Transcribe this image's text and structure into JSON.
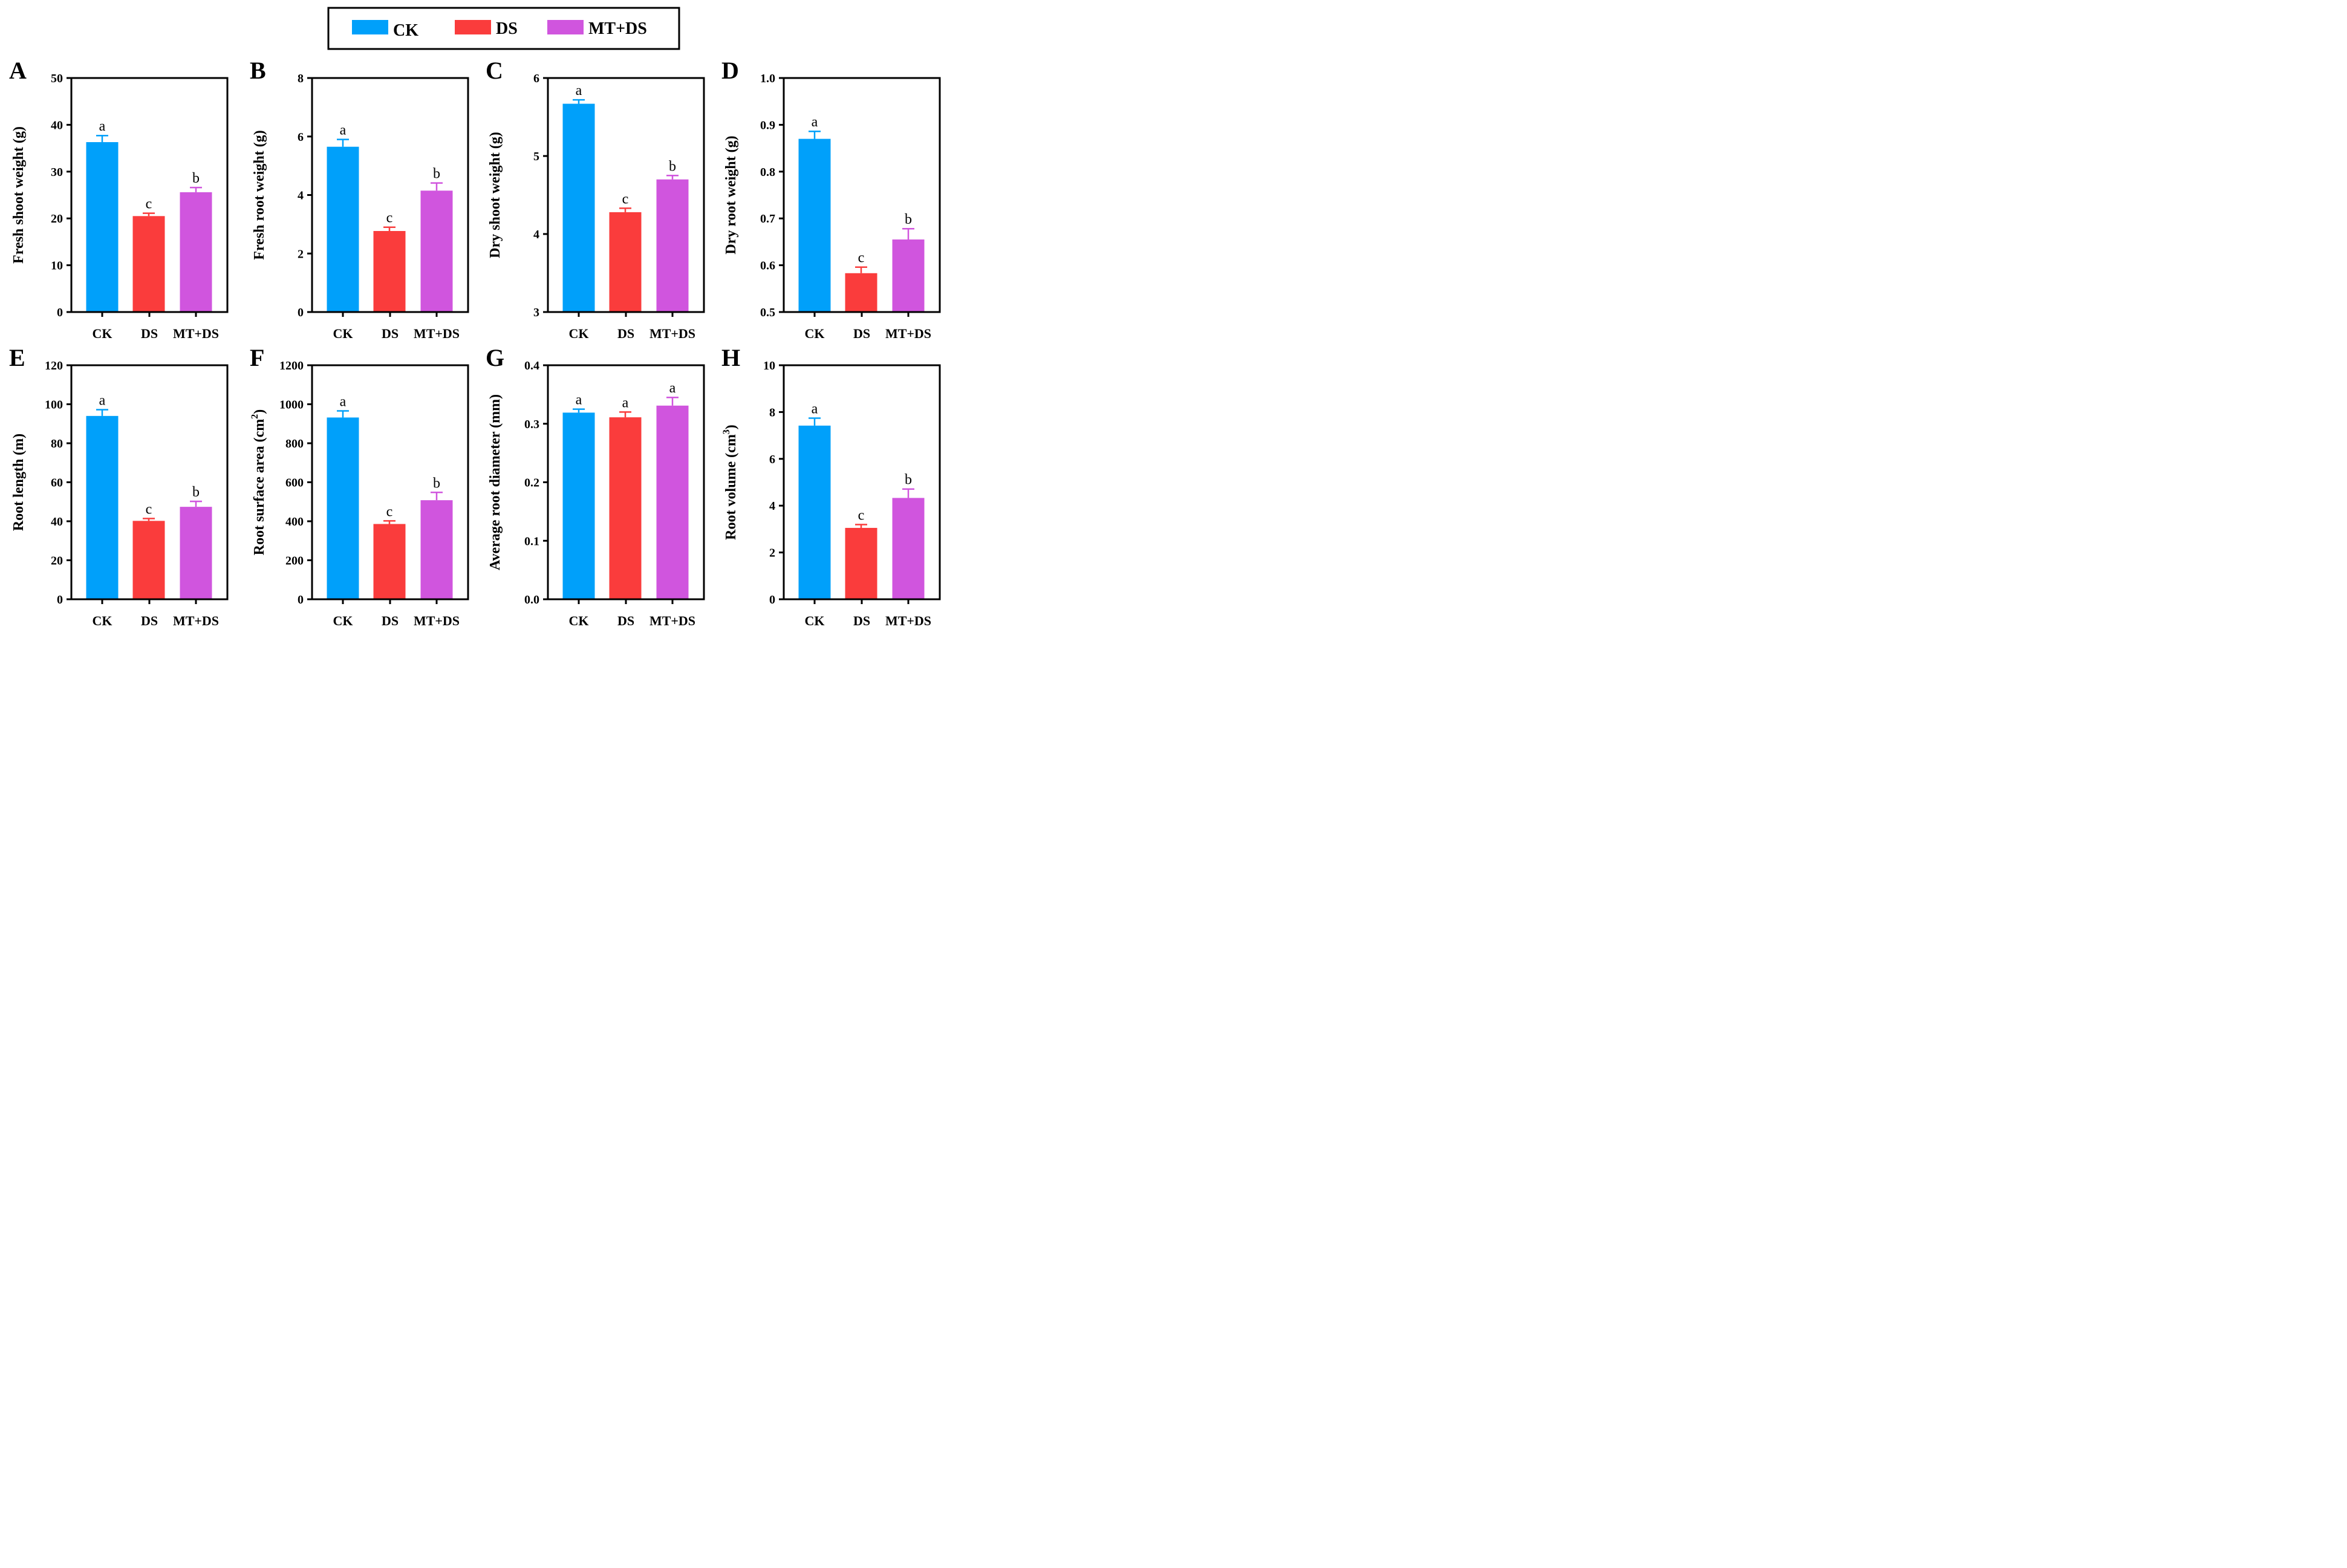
{
  "legend": {
    "entries": [
      "CK",
      "DS",
      "MT+DS"
    ]
  },
  "colors": {
    "CK": "#00a0fa",
    "DS": "#fa3c3c",
    "MT+DS": "#d055de"
  },
  "chart_data": [
    {
      "type": "bar",
      "title": "A",
      "categories": [
        "CK",
        "DS",
        "MT+DS"
      ],
      "values": [
        36.3,
        20.5,
        25.6
      ],
      "errors": [
        1.4,
        0.6,
        1.0
      ],
      "letters": [
        "a",
        "c",
        "b"
      ],
      "ylabel": "Fresh shoot weight (g)",
      "ylim": [
        0,
        50
      ],
      "yticks": [
        0,
        10,
        20,
        30,
        40,
        50
      ],
      "ytick_labels": [
        "0",
        "10",
        "20",
        "30",
        "40",
        "50"
      ]
    },
    {
      "type": "bar",
      "title": "B",
      "categories": [
        "CK",
        "DS",
        "MT+DS"
      ],
      "values": [
        5.65,
        2.77,
        4.15
      ],
      "errors": [
        0.25,
        0.13,
        0.26
      ],
      "letters": [
        "a",
        "c",
        "b"
      ],
      "ylabel": "Fresh root weight (g)",
      "ylim": [
        0,
        8
      ],
      "yticks": [
        0,
        2,
        4,
        6,
        8
      ],
      "ytick_labels": [
        "0",
        "2",
        "4",
        "6",
        "8"
      ]
    },
    {
      "type": "bar",
      "title": "C",
      "categories": [
        "CK",
        "DS",
        "MT+DS"
      ],
      "values": [
        5.67,
        4.28,
        4.7
      ],
      "errors": [
        0.05,
        0.05,
        0.05
      ],
      "letters": [
        "a",
        "c",
        "b"
      ],
      "ylabel": "Dry shoot weight (g)",
      "ylim": [
        3,
        6
      ],
      "yticks": [
        3,
        4,
        5,
        6
      ],
      "ytick_labels": [
        "3",
        "4",
        "5",
        "6"
      ]
    },
    {
      "type": "bar",
      "title": "D",
      "categories": [
        "CK",
        "DS",
        "MT+DS"
      ],
      "values": [
        0.87,
        0.583,
        0.655
      ],
      "errors": [
        0.016,
        0.013,
        0.023
      ],
      "letters": [
        "a",
        "c",
        "b"
      ],
      "ylabel": "Dry root weight (g)",
      "ylim": [
        0.5,
        1.0
      ],
      "yticks": [
        0.5,
        0.6,
        0.7,
        0.8,
        0.9,
        1.0
      ],
      "ytick_labels": [
        "0.5",
        "0.6",
        "0.7",
        "0.8",
        "0.9",
        "1.0"
      ]
    },
    {
      "type": "bar",
      "title": "E",
      "categories": [
        "CK",
        "DS",
        "MT+DS"
      ],
      "values": [
        94,
        40.2,
        47.4
      ],
      "errors": [
        3.2,
        1.2,
        2.8
      ],
      "letters": [
        "a",
        "c",
        "b"
      ],
      "ylabel": "Root length (m)",
      "ylim": [
        0,
        120
      ],
      "yticks": [
        0,
        20,
        40,
        60,
        80,
        100,
        120
      ],
      "ytick_labels": [
        "0",
        "20",
        "40",
        "60",
        "80",
        "100",
        "120"
      ]
    },
    {
      "type": "bar",
      "title": "F",
      "categories": [
        "CK",
        "DS",
        "MT+DS"
      ],
      "values": [
        932,
        386,
        508
      ],
      "errors": [
        34,
        16,
        40
      ],
      "letters": [
        "a",
        "c",
        "b"
      ],
      "ylabel": "Root surface area (cm",
      "ylabel_sup": "2",
      "ylabel_end": ")",
      "ylim": [
        0,
        1200
      ],
      "yticks": [
        0,
        200,
        400,
        600,
        800,
        1000,
        1200
      ],
      "ytick_labels": [
        "0",
        "200",
        "400",
        "600",
        "800",
        "1000",
        "1200"
      ]
    },
    {
      "type": "bar",
      "title": "G",
      "categories": [
        "CK",
        "DS",
        "MT+DS"
      ],
      "values": [
        0.319,
        0.311,
        0.331
      ],
      "errors": [
        0.006,
        0.009,
        0.014
      ],
      "letters": [
        "a",
        "a",
        "a"
      ],
      "ylabel": "Average root diameter (mm)",
      "ylim": [
        0,
        0.4
      ],
      "yticks": [
        0,
        0.1,
        0.2,
        0.3,
        0.4
      ],
      "ytick_labels": [
        "0.0",
        "0.1",
        "0.2",
        "0.3",
        "0.4"
      ]
    },
    {
      "type": "bar",
      "title": "H",
      "categories": [
        "CK",
        "DS",
        "MT+DS"
      ],
      "values": [
        7.42,
        3.05,
        4.33
      ],
      "errors": [
        0.32,
        0.14,
        0.38
      ],
      "letters": [
        "a",
        "c",
        "b"
      ],
      "ylabel": "Root volume (cm",
      "ylabel_sup": "3",
      "ylabel_end": ")",
      "ylim": [
        0,
        10
      ],
      "yticks": [
        0,
        2,
        4,
        6,
        8,
        10
      ],
      "ytick_labels": [
        "0",
        "2",
        "4",
        "6",
        "8",
        "10"
      ]
    }
  ]
}
